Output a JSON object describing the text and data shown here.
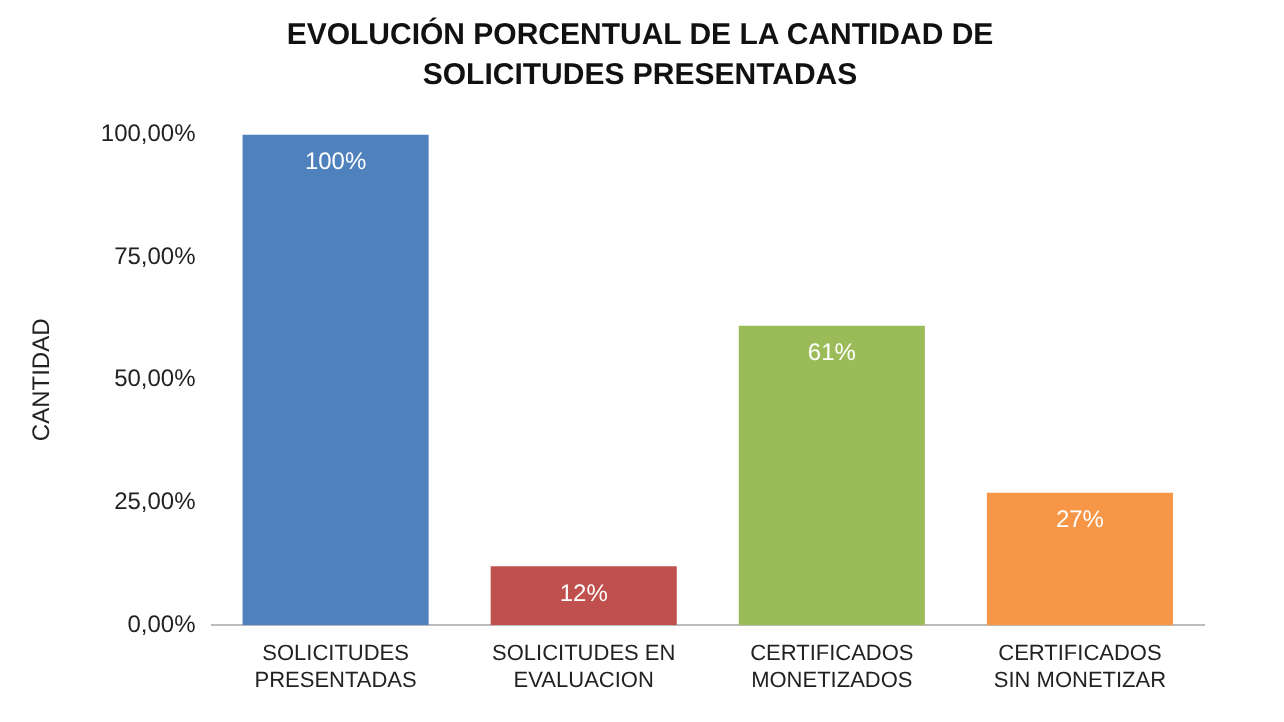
{
  "chart_data": {
    "type": "bar",
    "title": "EVOLUCIÓN PORCENTUAL DE LA CANTIDAD DE SOLICITUDES PRESENTADAS",
    "ylabel": "CANTIDAD",
    "categories": [
      "SOLICITUDES PRESENTADAS",
      "SOLICITUDES EN EVALUACION",
      "CERTIFICADOS MONETIZADOS",
      "CERTIFICADOS SIN MONETIZAR"
    ],
    "values": [
      100,
      12,
      61,
      27
    ],
    "colors": [
      "#4f81bd",
      "#c0504d",
      "#9bbb59",
      "#f79646"
    ],
    "value_labels": [
      "100%",
      "12%",
      "61%",
      "27%"
    ],
    "ylim": [
      0,
      100
    ],
    "yticks": [
      {
        "value": 0,
        "label": "0,00%"
      },
      {
        "value": 25,
        "label": "25,00%"
      },
      {
        "value": 50,
        "label": "50,00%"
      },
      {
        "value": 75,
        "label": "75,00%"
      },
      {
        "value": 100,
        "label": "100,00%"
      }
    ],
    "grid": false,
    "legend": false
  }
}
